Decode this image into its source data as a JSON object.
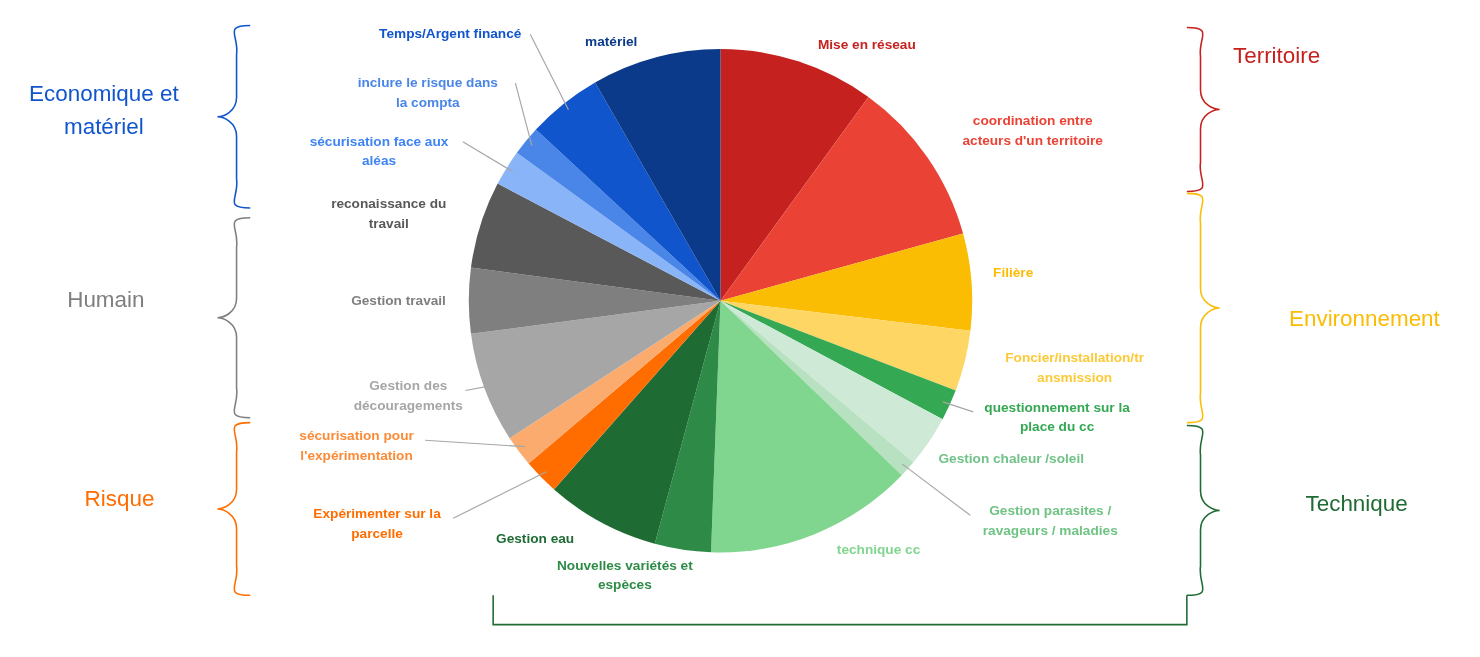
{
  "chart_data": {
    "type": "pie",
    "categories": [
      "Mise en réseau",
      "coordination entre acteurs d'un territoire",
      "Filière",
      "Foncier/installation/transmission",
      "questionnement sur la place du cc",
      "Gestion chaleur /soleil",
      "Gestion parasites / ravageurs / maladies",
      "technique cc",
      "Nouvelles variétés et espèces",
      "Gestion eau",
      "Expérimenter sur la parcelle",
      "sécurisation pour l'expérimentation",
      "Gestion des découragements",
      "Gestion travail",
      "reconaissance du travail",
      "sécurisation face aux aléas",
      "inclure le risque dans la compta",
      "Temps/Argent financé",
      "matériel"
    ],
    "values": [
      10.0,
      10.7,
      6.2,
      3.9,
      2.0,
      3.3,
      1.1,
      13.4,
      3.6,
      7.3,
      2.3,
      2.0,
      7.1,
      4.2,
      5.6,
      2.3,
      1.9,
      4.8,
      8.3
    ],
    "colors": [
      "#c5221f",
      "#ea4335",
      "#fbbc04",
      "#fdd663",
      "#34a853",
      "#ceead6",
      "#b7e1c1",
      "#81d68f",
      "#2e8b47",
      "#1e6b34",
      "#ff6d01",
      "#fcab6e",
      "#a6a6a6",
      "#7f7f7f",
      "#595959",
      "#8ab4f8",
      "#4a86e8",
      "#1155cc",
      "#0b3a8a"
    ],
    "annotations": [
      "Territoire",
      "Environnement",
      "Technique",
      "Risque",
      "Humain",
      "Economique et matériel"
    ]
  }
}
